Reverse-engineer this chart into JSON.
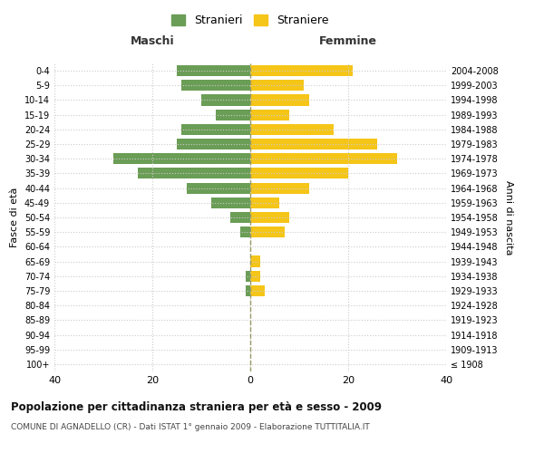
{
  "age_groups": [
    "100+",
    "95-99",
    "90-94",
    "85-89",
    "80-84",
    "75-79",
    "70-74",
    "65-69",
    "60-64",
    "55-59",
    "50-54",
    "45-49",
    "40-44",
    "35-39",
    "30-34",
    "25-29",
    "20-24",
    "15-19",
    "10-14",
    "5-9",
    "0-4"
  ],
  "birth_years": [
    "≤ 1908",
    "1909-1913",
    "1914-1918",
    "1919-1923",
    "1924-1928",
    "1929-1933",
    "1934-1938",
    "1939-1943",
    "1944-1948",
    "1949-1953",
    "1954-1958",
    "1959-1963",
    "1964-1968",
    "1969-1973",
    "1974-1978",
    "1979-1983",
    "1984-1988",
    "1989-1993",
    "1994-1998",
    "1999-2003",
    "2004-2008"
  ],
  "males": [
    0,
    0,
    0,
    0,
    0,
    1,
    1,
    0,
    0,
    2,
    4,
    8,
    13,
    23,
    28,
    15,
    14,
    7,
    10,
    14,
    15
  ],
  "females": [
    0,
    0,
    0,
    0,
    0,
    3,
    2,
    2,
    0,
    7,
    8,
    6,
    12,
    20,
    30,
    26,
    17,
    8,
    12,
    11,
    21
  ],
  "male_color": "#6a9d55",
  "female_color": "#f5c518",
  "background_color": "#ffffff",
  "grid_color": "#cccccc",
  "title": "Popolazione per cittadinanza straniera per età e sesso - 2009",
  "subtitle": "COMUNE DI AGNADELLO (CR) - Dati ISTAT 1° gennaio 2009 - Elaborazione TUTTITALIA.IT",
  "xlabel_left": "Maschi",
  "xlabel_right": "Femmine",
  "ylabel_left": "Fasce di età",
  "ylabel_right": "Anni di nascita",
  "legend_male": "Stranieri",
  "legend_female": "Straniere",
  "xlim": 40,
  "dashed_line_color": "#999966"
}
